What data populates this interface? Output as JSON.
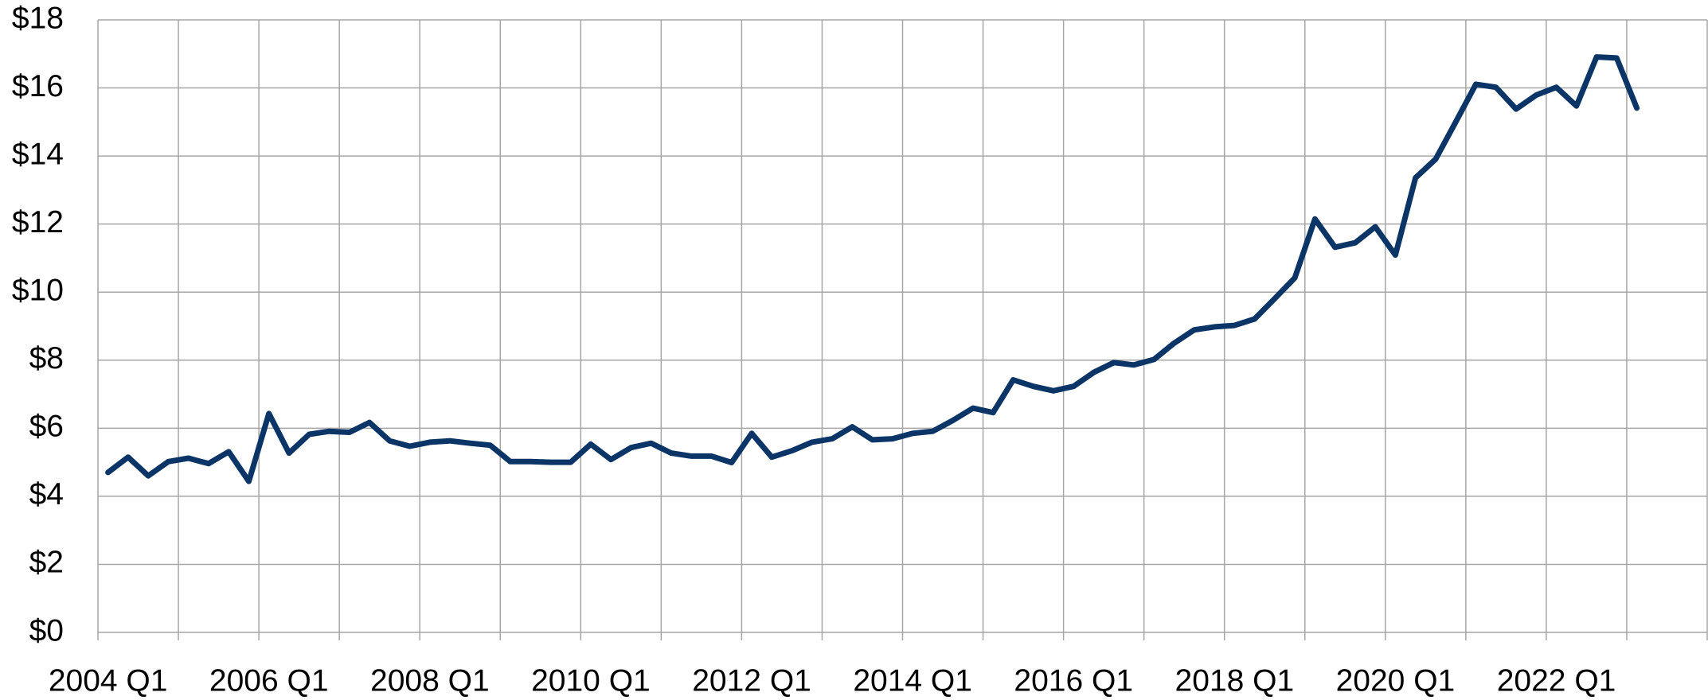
{
  "chart_data": {
    "type": "line",
    "categories": [
      "2004 Q1",
      null,
      null,
      null,
      null,
      null,
      null,
      null,
      "2006 Q1",
      null,
      null,
      null,
      null,
      null,
      null,
      null,
      "2008 Q1",
      null,
      null,
      null,
      null,
      null,
      null,
      null,
      "2010 Q1",
      null,
      null,
      null,
      null,
      null,
      null,
      null,
      "2012 Q1",
      null,
      null,
      null,
      null,
      null,
      null,
      null,
      "2014 Q1",
      null,
      null,
      null,
      null,
      null,
      null,
      null,
      "2016 Q1",
      null,
      null,
      null,
      null,
      null,
      null,
      null,
      "2018 Q1",
      null,
      null,
      null,
      null,
      null,
      null,
      null,
      "2020 Q1",
      null,
      null,
      null,
      null,
      null,
      null,
      null,
      "2022 Q1",
      null,
      null,
      null,
      null,
      null,
      null,
      null
    ],
    "series": [
      {
        "color": "#0b3566",
        "values": [
          4.7,
          5.15,
          4.6,
          5.02,
          5.12,
          4.96,
          5.31,
          4.44,
          6.43,
          5.27,
          5.82,
          5.91,
          5.88,
          6.17,
          5.63,
          5.47,
          5.59,
          5.63,
          5.56,
          5.5,
          5.02,
          5.02,
          5.0,
          5.0,
          5.53,
          5.08,
          5.43,
          5.56,
          5.27,
          5.18,
          5.18,
          4.99,
          5.85,
          5.15,
          5.34,
          5.59,
          5.69,
          6.04,
          5.66,
          5.69,
          5.85,
          5.91,
          6.23,
          6.59,
          6.46,
          7.42,
          7.23,
          7.1,
          7.23,
          7.64,
          7.93,
          7.86,
          8.02,
          8.5,
          8.89,
          8.98,
          9.02,
          9.21,
          9.81,
          10.42,
          12.15,
          11.32,
          11.45,
          11.92,
          11.09,
          13.36,
          13.91,
          15.0,
          16.11,
          16.02,
          15.38,
          15.79,
          16.02,
          15.47,
          16.91,
          16.88,
          15.41,
          null,
          null,
          null
        ]
      }
    ],
    "ylim": [
      0,
      18
    ],
    "yticks": [
      {
        "value": 0,
        "label": "$0"
      },
      {
        "value": 2,
        "label": "$2"
      },
      {
        "value": 4,
        "label": "$4"
      },
      {
        "value": 6,
        "label": "$6"
      },
      {
        "value": 8,
        "label": "$8"
      },
      {
        "value": 10,
        "label": "$10"
      },
      {
        "value": 12,
        "label": "$12"
      },
      {
        "value": 14,
        "label": "$14"
      },
      {
        "value": 16,
        "label": "$16"
      },
      {
        "value": 18,
        "label": "$18"
      }
    ],
    "grid": true
  }
}
